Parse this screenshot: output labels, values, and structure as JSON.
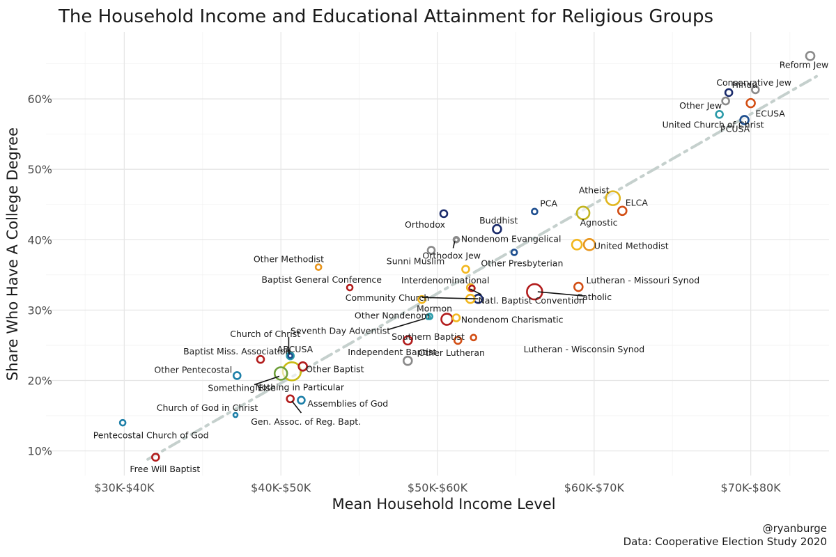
{
  "chart_data": {
    "type": "scatter",
    "title": "The Household Income and Educational Attainment for Religious Groups",
    "xlabel": "Mean Household Income Level",
    "ylabel": "Share Who Have A College Degree",
    "x_ticks": [
      {
        "value": 1,
        "label": "$30K-$40K"
      },
      {
        "value": 2,
        "label": "$40K-$50K"
      },
      {
        "value": 3,
        "label": "$50K-$60K"
      },
      {
        "value": 4,
        "label": "$60K-$70K"
      },
      {
        "value": 5,
        "label": "$70K-$80K"
      }
    ],
    "y_ticks": [
      {
        "value": 0.1,
        "label": "10%"
      },
      {
        "value": 0.2,
        "label": "20%"
      },
      {
        "value": 0.3,
        "label": "30%"
      },
      {
        "value": 0.4,
        "label": "40%"
      },
      {
        "value": 0.5,
        "label": "50%"
      },
      {
        "value": 0.6,
        "label": "60%"
      }
    ],
    "xlim": [
      0.5,
      5.5
    ],
    "ylim": [
      0.065,
      0.695
    ],
    "grid": true,
    "trend_line": {
      "style": "dashed",
      "color": "#c5d0cd",
      "from": [
        1.15,
        0.088
      ],
      "to": [
        5.42,
        0.632
      ]
    },
    "points": [
      {
        "name": "Reform Jew",
        "x": 5.38,
        "y": 0.661,
        "size": 6,
        "color": "#8a8a8a",
        "lx": 5.34,
        "ly": 0.648,
        "anchor": "middle"
      },
      {
        "name": "Hindu",
        "x": 4.86,
        "y": 0.609,
        "size": 5,
        "color": "#1a2b6b",
        "lx": 4.88,
        "ly": 0.62,
        "anchor": "start"
      },
      {
        "name": "Conservative Jew",
        "x": 5.03,
        "y": 0.613,
        "size": 5,
        "color": "#8a8a8a",
        "lx": 5.02,
        "ly": 0.623,
        "anchor": "middle"
      },
      {
        "name": "Other Jew",
        "x": 4.84,
        "y": 0.597,
        "size": 5,
        "color": "#8a8a8a",
        "lx": 4.68,
        "ly": 0.59,
        "anchor": "middle"
      },
      {
        "name": "ECUSA",
        "x": 5.0,
        "y": 0.594,
        "size": 6,
        "color": "#d24e14",
        "lx": 5.03,
        "ly": 0.579,
        "anchor": "start"
      },
      {
        "name": "United Church of Christ",
        "x": 4.8,
        "y": 0.578,
        "size": 5,
        "color": "#2a9aa8",
        "lx": 4.76,
        "ly": 0.563,
        "anchor": "middle"
      },
      {
        "name": "PCUSA",
        "x": 4.96,
        "y": 0.57,
        "size": 6,
        "color": "#1d4e8f",
        "lx": 4.9,
        "ly": 0.557,
        "anchor": "middle"
      },
      {
        "name": "Atheist",
        "x": 4.12,
        "y": 0.459,
        "size": 10,
        "color": "#e1b61d",
        "lx": 4.0,
        "ly": 0.47,
        "anchor": "middle"
      },
      {
        "name": "ELCA",
        "x": 4.18,
        "y": 0.441,
        "size": 6,
        "color": "#d24e14",
        "lx": 4.2,
        "ly": 0.452,
        "anchor": "start"
      },
      {
        "name": "Agnostic",
        "x": 3.93,
        "y": 0.438,
        "size": 9,
        "color": "#c2b41e",
        "lx": 4.03,
        "ly": 0.424,
        "anchor": "middle"
      },
      {
        "name": "PCA",
        "x": 3.62,
        "y": 0.44,
        "size": 4,
        "color": "#1d4e8f",
        "lx": 3.71,
        "ly": 0.451,
        "anchor": "middle"
      },
      {
        "name": "Orthodox",
        "x": 3.04,
        "y": 0.437,
        "size": 5,
        "color": "#1a2b6b",
        "lx": 2.92,
        "ly": 0.421,
        "anchor": "middle"
      },
      {
        "name": "Buddhist",
        "x": 3.38,
        "y": 0.415,
        "size": 6,
        "color": "#1a2b6b",
        "lx": 3.39,
        "ly": 0.427,
        "anchor": "middle"
      },
      {
        "name": "Nondenom Evangelical",
        "x": 3.12,
        "y": 0.4,
        "size": 4,
        "color": "#8a8a8a",
        "lx": 3.15,
        "ly": 0.401,
        "anchor": "start"
      },
      {
        "name": "Sunni Muslim",
        "x": 2.96,
        "y": 0.385,
        "size": 5,
        "color": "#8a8a8a",
        "lx": 2.86,
        "ly": 0.369,
        "anchor": "middle"
      },
      {
        "name": "Orthodox Jew",
        "x": 3.12,
        "y": 0.4,
        "size": 3,
        "color": "#8a8a8a",
        "lx": 3.09,
        "ly": 0.377,
        "anchor": "middle",
        "callout": [
          3.11,
          0.398,
          3.1,
          0.388
        ]
      },
      {
        "name": "United Methodist",
        "x": 3.97,
        "y": 0.393,
        "size": 8,
        "color": "#e8951c",
        "lx": 4.0,
        "ly": 0.391,
        "anchor": "start"
      },
      {
        "name": "United Methodist (2)",
        "x": 3.89,
        "y": 0.393,
        "size": 7,
        "color": "#f2b71e",
        "lx": null,
        "ly": null,
        "anchor": "start",
        "hidden_label": true
      },
      {
        "name": "Other Presbyterian",
        "x": 3.49,
        "y": 0.382,
        "size": 4,
        "color": "#1d4e8f",
        "lx": 3.54,
        "ly": 0.366,
        "anchor": "middle"
      },
      {
        "name": "Other Methodist",
        "x": 2.24,
        "y": 0.361,
        "size": 4,
        "color": "#e8951c",
        "lx": 2.05,
        "ly": 0.372,
        "anchor": "middle"
      },
      {
        "name": "Baptist General Conference",
        "x": 2.44,
        "y": 0.332,
        "size": 4,
        "color": "#b21c1c",
        "lx": 2.26,
        "ly": 0.343,
        "anchor": "middle"
      },
      {
        "name": "Interdenominational",
        "x": 3.18,
        "y": 0.358,
        "size": 5,
        "color": "#f2b71e",
        "lx": 3.05,
        "ly": 0.342,
        "anchor": "middle"
      },
      {
        "name": "Lutheran - Missouri Synod",
        "x": 3.9,
        "y": 0.333,
        "size": 6,
        "color": "#d24e14",
        "lx": 3.95,
        "ly": 0.342,
        "anchor": "start"
      },
      {
        "name": "Catholic",
        "x": 3.62,
        "y": 0.326,
        "size": 11,
        "color": "#b21c1c",
        "lx": 4.0,
        "ly": 0.318,
        "anchor": "middle",
        "callout": [
          3.64,
          0.326,
          3.94,
          0.32
        ]
      },
      {
        "name": "Community Church",
        "x": 2.9,
        "y": 0.315,
        "size": 5,
        "color": "#f2b71e",
        "lx": 2.68,
        "ly": 0.317,
        "anchor": "middle",
        "callout": [
          2.9,
          0.318,
          3.26,
          0.316
        ]
      },
      {
        "name": "Natl. Baptist Convention",
        "x": 3.26,
        "y": 0.316,
        "size": 6,
        "color": "#1a2b6b",
        "lx": 3.26,
        "ly": 0.313,
        "anchor": "start"
      },
      {
        "name": "Natl. Baptist Convention (2)",
        "x": 3.21,
        "y": 0.316,
        "size": 6,
        "color": "#f2b71e",
        "lx": null,
        "ly": null,
        "anchor": "start",
        "hidden_label": true
      },
      {
        "name": "Other Lutheran (2)",
        "x": 3.21,
        "y": 0.332,
        "size": 5,
        "color": "#f2b71e",
        "lx": null,
        "ly": null,
        "anchor": "start",
        "hidden_label": true
      },
      {
        "name": "Mormon",
        "x": 3.22,
        "y": 0.331,
        "size": 4,
        "color": "#b21c1c",
        "lx": 2.98,
        "ly": 0.302,
        "anchor": "middle",
        "callout": [
          3.21,
          0.33,
          3.28,
          0.322
        ]
      },
      {
        "name": "Other Nondenom",
        "x": 2.95,
        "y": 0.291,
        "size": 4,
        "color": "#2a9aa8",
        "lx": 2.71,
        "ly": 0.292,
        "anchor": "middle"
      },
      {
        "name": "Nondenom Charismatic",
        "x": 3.12,
        "y": 0.289,
        "size": 5,
        "color": "#f2b71e",
        "lx": 3.15,
        "ly": 0.286,
        "anchor": "start"
      },
      {
        "name": "Seventh Day Adventist",
        "x": 2.94,
        "y": 0.29,
        "size": 3,
        "color": "#2a9aa8",
        "lx": 2.38,
        "ly": 0.27,
        "anchor": "middle",
        "callout": [
          2.92,
          0.288,
          2.68,
          0.272
        ]
      },
      {
        "name": "Southern Baptist",
        "x": 3.06,
        "y": 0.287,
        "size": 8,
        "color": "#b21c1c",
        "lx": 2.94,
        "ly": 0.262,
        "anchor": "middle"
      },
      {
        "name": "Other Lutheran",
        "x": 3.13,
        "y": 0.257,
        "size": 5,
        "color": "#d24e14",
        "lx": 3.09,
        "ly": 0.239,
        "anchor": "middle"
      },
      {
        "name": "Lutheran - Wisconsin Synod",
        "x": 3.23,
        "y": 0.261,
        "size": 4,
        "color": "#d24e14",
        "lx": 3.55,
        "ly": 0.244,
        "anchor": "start"
      },
      {
        "name": "Independent Baptist",
        "x": 2.81,
        "y": 0.257,
        "size": 6,
        "color": "#b21c1c",
        "lx": 2.71,
        "ly": 0.24,
        "anchor": "middle"
      },
      {
        "name": "Other Jew (2)",
        "x": 2.81,
        "y": 0.228,
        "size": 6,
        "color": "#8a8a8a",
        "lx": null,
        "ly": null,
        "anchor": "start",
        "hidden_label": true
      },
      {
        "name": "Church of Christ",
        "x": 2.06,
        "y": 0.235,
        "size": 5,
        "color": "#2a9aa8",
        "lx": 1.9,
        "ly": 0.266,
        "anchor": "middle",
        "callout": [
          2.05,
          0.238,
          2.05,
          0.262
        ]
      },
      {
        "name": "ABCUSA",
        "x": 2.06,
        "y": 0.235,
        "size": 3,
        "color": "#1d4e8f",
        "lx": 2.09,
        "ly": 0.244,
        "anchor": "middle"
      },
      {
        "name": "Baptist Miss. Association",
        "x": 1.87,
        "y": 0.23,
        "size": 5,
        "color": "#b21c1c",
        "lx": 1.72,
        "ly": 0.241,
        "anchor": "middle"
      },
      {
        "name": "Other Pentecostal",
        "x": 1.72,
        "y": 0.207,
        "size": 5,
        "color": "#1d7fa8",
        "lx": 1.44,
        "ly": 0.215,
        "anchor": "middle"
      },
      {
        "name": "Nothing in Particular",
        "x": 2.07,
        "y": 0.213,
        "size": 13,
        "color": "#c9bb14",
        "lx": 2.12,
        "ly": 0.19,
        "anchor": "middle"
      },
      {
        "name": "Something Else",
        "x": 2.0,
        "y": 0.21,
        "size": 9,
        "color": "#6e9f3a",
        "lx": 1.75,
        "ly": 0.189,
        "anchor": "middle",
        "callout": [
          1.99,
          0.206,
          1.83,
          0.194
        ]
      },
      {
        "name": "Other Baptist",
        "x": 2.14,
        "y": 0.22,
        "size": 6,
        "color": "#b21c1c",
        "lx": 2.16,
        "ly": 0.216,
        "anchor": "start"
      },
      {
        "name": "Church of God in Christ",
        "x": 1.71,
        "y": 0.151,
        "size": 3,
        "color": "#1d7fa8",
        "lx": 1.53,
        "ly": 0.161,
        "anchor": "middle"
      },
      {
        "name": "Gen. Assoc. of Reg. Bapt.",
        "x": 2.06,
        "y": 0.174,
        "size": 5,
        "color": "#b21c1c",
        "lx": 2.16,
        "ly": 0.141,
        "anchor": "middle",
        "callout": [
          2.07,
          0.171,
          2.13,
          0.154
        ]
      },
      {
        "name": "Assemblies of God",
        "x": 2.13,
        "y": 0.172,
        "size": 5,
        "color": "#1d7fa8",
        "lx": 2.17,
        "ly": 0.167,
        "anchor": "start"
      },
      {
        "name": "Pentecostal Church of God",
        "x": 0.99,
        "y": 0.14,
        "size": 4,
        "color": "#1d7fa8",
        "lx": 1.17,
        "ly": 0.122,
        "anchor": "middle"
      },
      {
        "name": "Free Will Baptist",
        "x": 1.2,
        "y": 0.091,
        "size": 5,
        "color": "#b21c1c",
        "lx": 1.26,
        "ly": 0.074,
        "anchor": "middle"
      }
    ]
  },
  "caption": {
    "author": "@ryanburge",
    "source": "Data: Cooperative Election Study 2020"
  }
}
